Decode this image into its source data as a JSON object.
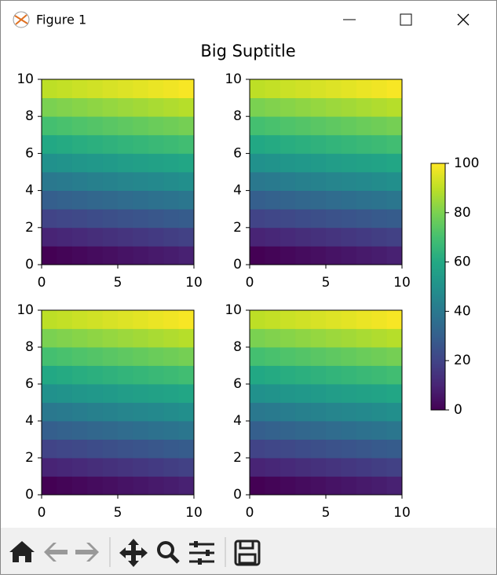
{
  "window": {
    "title": "Figure 1"
  },
  "chart_data": {
    "type": "heatmap",
    "title": "Big Suptitle",
    "colormap": "viridis",
    "panels": [
      {
        "xlim": [
          0,
          10
        ],
        "xticks": [
          0,
          5,
          10
        ],
        "ylim": [
          0,
          10
        ],
        "yticks": [
          0,
          2,
          4,
          6,
          8,
          10
        ],
        "values": [
          [
            0,
            1,
            2,
            3,
            4,
            5,
            6,
            7,
            8,
            9
          ],
          [
            10,
            11,
            12,
            13,
            14,
            15,
            16,
            17,
            18,
            19
          ],
          [
            20,
            21,
            22,
            23,
            24,
            25,
            26,
            27,
            28,
            29
          ],
          [
            30,
            31,
            32,
            33,
            34,
            35,
            36,
            37,
            38,
            39
          ],
          [
            40,
            41,
            42,
            43,
            44,
            45,
            46,
            47,
            48,
            49
          ],
          [
            50,
            51,
            52,
            53,
            54,
            55,
            56,
            57,
            58,
            59
          ],
          [
            60,
            61,
            62,
            63,
            64,
            65,
            66,
            67,
            68,
            69
          ],
          [
            70,
            71,
            72,
            73,
            74,
            75,
            76,
            77,
            78,
            79
          ],
          [
            80,
            81,
            82,
            83,
            84,
            85,
            86,
            87,
            88,
            89
          ],
          [
            90,
            91,
            92,
            93,
            94,
            95,
            96,
            97,
            98,
            99
          ]
        ]
      },
      {
        "xlim": [
          0,
          10
        ],
        "xticks": [
          0,
          5,
          10
        ],
        "ylim": [
          0,
          10
        ],
        "yticks": [
          0,
          2,
          4,
          6,
          8,
          10
        ],
        "values": [
          [
            0,
            1,
            2,
            3,
            4,
            5,
            6,
            7,
            8,
            9
          ],
          [
            10,
            11,
            12,
            13,
            14,
            15,
            16,
            17,
            18,
            19
          ],
          [
            20,
            21,
            22,
            23,
            24,
            25,
            26,
            27,
            28,
            29
          ],
          [
            30,
            31,
            32,
            33,
            34,
            35,
            36,
            37,
            38,
            39
          ],
          [
            40,
            41,
            42,
            43,
            44,
            45,
            46,
            47,
            48,
            49
          ],
          [
            50,
            51,
            52,
            53,
            54,
            55,
            56,
            57,
            58,
            59
          ],
          [
            60,
            61,
            62,
            63,
            64,
            65,
            66,
            67,
            68,
            69
          ],
          [
            70,
            71,
            72,
            73,
            74,
            75,
            76,
            77,
            78,
            79
          ],
          [
            80,
            81,
            82,
            83,
            84,
            85,
            86,
            87,
            88,
            89
          ],
          [
            90,
            91,
            92,
            93,
            94,
            95,
            96,
            97,
            98,
            99
          ]
        ]
      },
      {
        "xlim": [
          0,
          10
        ],
        "xticks": [
          0,
          5,
          10
        ],
        "ylim": [
          0,
          10
        ],
        "yticks": [
          0,
          2,
          4,
          6,
          8,
          10
        ],
        "values": [
          [
            0,
            1,
            2,
            3,
            4,
            5,
            6,
            7,
            8,
            9
          ],
          [
            10,
            11,
            12,
            13,
            14,
            15,
            16,
            17,
            18,
            19
          ],
          [
            20,
            21,
            22,
            23,
            24,
            25,
            26,
            27,
            28,
            29
          ],
          [
            30,
            31,
            32,
            33,
            34,
            35,
            36,
            37,
            38,
            39
          ],
          [
            40,
            41,
            42,
            43,
            44,
            45,
            46,
            47,
            48,
            49
          ],
          [
            50,
            51,
            52,
            53,
            54,
            55,
            56,
            57,
            58,
            59
          ],
          [
            60,
            61,
            62,
            63,
            64,
            65,
            66,
            67,
            68,
            69
          ],
          [
            70,
            71,
            72,
            73,
            74,
            75,
            76,
            77,
            78,
            79
          ],
          [
            80,
            81,
            82,
            83,
            84,
            85,
            86,
            87,
            88,
            89
          ],
          [
            90,
            91,
            92,
            93,
            94,
            95,
            96,
            97,
            98,
            99
          ]
        ]
      },
      {
        "xlim": [
          0,
          10
        ],
        "xticks": [
          0,
          5,
          10
        ],
        "ylim": [
          0,
          10
        ],
        "yticks": [
          0,
          2,
          4,
          6,
          8,
          10
        ],
        "values": [
          [
            0,
            1,
            2,
            3,
            4,
            5,
            6,
            7,
            8,
            9
          ],
          [
            10,
            11,
            12,
            13,
            14,
            15,
            16,
            17,
            18,
            19
          ],
          [
            20,
            21,
            22,
            23,
            24,
            25,
            26,
            27,
            28,
            29
          ],
          [
            30,
            31,
            32,
            33,
            34,
            35,
            36,
            37,
            38,
            39
          ],
          [
            40,
            41,
            42,
            43,
            44,
            45,
            46,
            47,
            48,
            49
          ],
          [
            50,
            51,
            52,
            53,
            54,
            55,
            56,
            57,
            58,
            59
          ],
          [
            60,
            61,
            62,
            63,
            64,
            65,
            66,
            67,
            68,
            69
          ],
          [
            70,
            71,
            72,
            73,
            74,
            75,
            76,
            77,
            78,
            79
          ],
          [
            80,
            81,
            82,
            83,
            84,
            85,
            86,
            87,
            88,
            89
          ],
          [
            90,
            91,
            92,
            93,
            94,
            95,
            96,
            97,
            98,
            99
          ]
        ]
      }
    ],
    "colorbar": {
      "lim": [
        0,
        100
      ],
      "ticks": [
        0,
        20,
        40,
        60,
        80,
        100
      ]
    }
  }
}
